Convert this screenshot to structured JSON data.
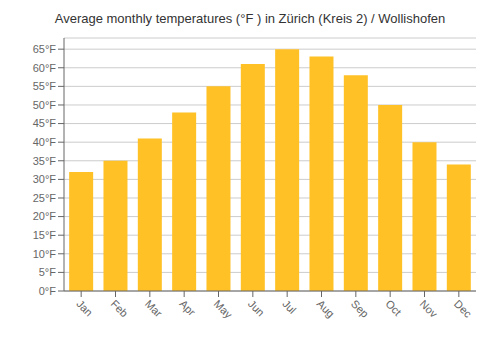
{
  "chart_data": {
    "type": "bar",
    "title": "Average monthly temperatures (°F ) in Zürich (Kreis 2) / Wollishofen",
    "categories": [
      "Jan",
      "Feb",
      "Mar",
      "Apr",
      "May",
      "Jun",
      "Jul",
      "Aug",
      "Sep",
      "Oct",
      "Nov",
      "Dec"
    ],
    "values": [
      32,
      35,
      41,
      48,
      55,
      61,
      65,
      63,
      58,
      50,
      40,
      34
    ],
    "color": "#FFC125",
    "ylim": [
      0,
      68
    ],
    "yticks": [
      {
        "value": 0,
        "label": "0°F"
      },
      {
        "value": 5,
        "label": "5°F"
      },
      {
        "value": 10,
        "label": "10°F"
      },
      {
        "value": 15,
        "label": "15°F"
      },
      {
        "value": 20,
        "label": "20°F"
      },
      {
        "value": 25,
        "label": "25°F"
      },
      {
        "value": 30,
        "label": "30°F"
      },
      {
        "value": 35,
        "label": "35°F"
      },
      {
        "value": 40,
        "label": "40°F"
      },
      {
        "value": 45,
        "label": "45°F"
      },
      {
        "value": 50,
        "label": "50°F"
      },
      {
        "value": 55,
        "label": "55°F"
      },
      {
        "value": 60,
        "label": "60°F"
      },
      {
        "value": 65,
        "label": "65°F"
      }
    ],
    "grid": true
  }
}
